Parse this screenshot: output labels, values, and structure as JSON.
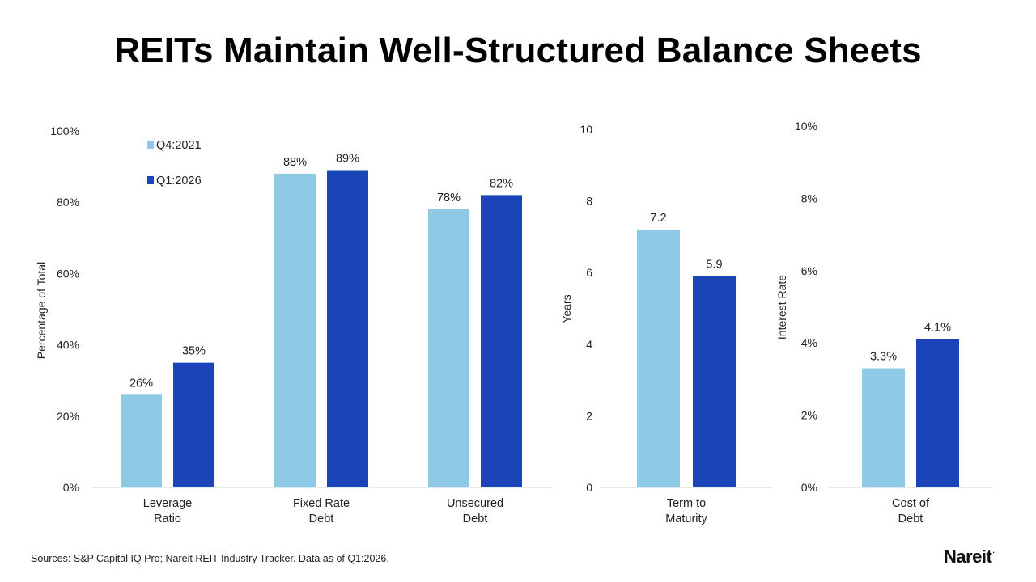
{
  "title": "REITs Maintain Well-Structured Balance Sheets",
  "source": "Sources: S&P Capital IQ Pro; Nareit REIT Industry Tracker. Data as of Q1:2026.",
  "logo": {
    "text": "Nareit",
    "mark": "."
  },
  "colors": {
    "Q4:2021": "#8ecae6",
    "Q1:2026": "#1a44b8",
    "axis": "#d0d0d0"
  },
  "legend": {
    "position": "top-left",
    "entries": [
      "Q4:2021",
      "Q1:2026"
    ]
  },
  "chart_data": [
    {
      "type": "bar",
      "ylabel": "Percentage of Total",
      "ylim": [
        0,
        100
      ],
      "yticks": [
        {
          "value": 0,
          "label": "0%"
        },
        {
          "value": 20,
          "label": "20%"
        },
        {
          "value": 40,
          "label": "40%"
        },
        {
          "value": 60,
          "label": "60%"
        },
        {
          "value": 80,
          "label": "80%"
        },
        {
          "value": 100,
          "label": "100%"
        }
      ],
      "categories": [
        [
          "Leverage",
          "Ratio"
        ],
        [
          "Fixed Rate",
          "Debt"
        ],
        [
          "Unsecured",
          "Debt"
        ]
      ],
      "series": [
        {
          "name": "Q4:2021",
          "values": [
            26,
            88,
            78
          ],
          "labels": [
            "26%",
            "88%",
            "78%"
          ]
        },
        {
          "name": "Q1:2026",
          "values": [
            35,
            89,
            82
          ],
          "labels": [
            "35%",
            "89%",
            "82%"
          ]
        }
      ],
      "grid": false
    },
    {
      "type": "bar",
      "ylabel": "Years",
      "ylim": [
        0,
        10
      ],
      "yticks": [
        {
          "value": 0,
          "label": "0"
        },
        {
          "value": 2,
          "label": "2"
        },
        {
          "value": 4,
          "label": "4"
        },
        {
          "value": 6,
          "label": "6"
        },
        {
          "value": 8,
          "label": "8"
        },
        {
          "value": 10,
          "label": "10"
        }
      ],
      "categories": [
        [
          "Term to",
          "Maturity"
        ]
      ],
      "series": [
        {
          "name": "Q4:2021",
          "values": [
            7.2
          ],
          "labels": [
            "7.2"
          ]
        },
        {
          "name": "Q1:2026",
          "values": [
            5.9
          ],
          "labels": [
            "5.9"
          ]
        }
      ],
      "grid": false
    },
    {
      "type": "bar",
      "ylabel": "Interest Rate",
      "ylim": [
        0,
        10
      ],
      "yticks": [
        {
          "value": 0,
          "label": "0%"
        },
        {
          "value": 2,
          "label": "2%"
        },
        {
          "value": 4,
          "label": "4%"
        },
        {
          "value": 6,
          "label": "6%"
        },
        {
          "value": 8,
          "label": "8%"
        },
        {
          "value": 10,
          "label": "10%"
        }
      ],
      "categories": [
        [
          "Cost of",
          "Debt"
        ]
      ],
      "series": [
        {
          "name": "Q4:2021",
          "values": [
            3.3
          ],
          "labels": [
            "3.3%"
          ]
        },
        {
          "name": "Q1:2026",
          "values": [
            4.1
          ],
          "labels": [
            "4.1%"
          ]
        }
      ],
      "grid": false
    }
  ]
}
